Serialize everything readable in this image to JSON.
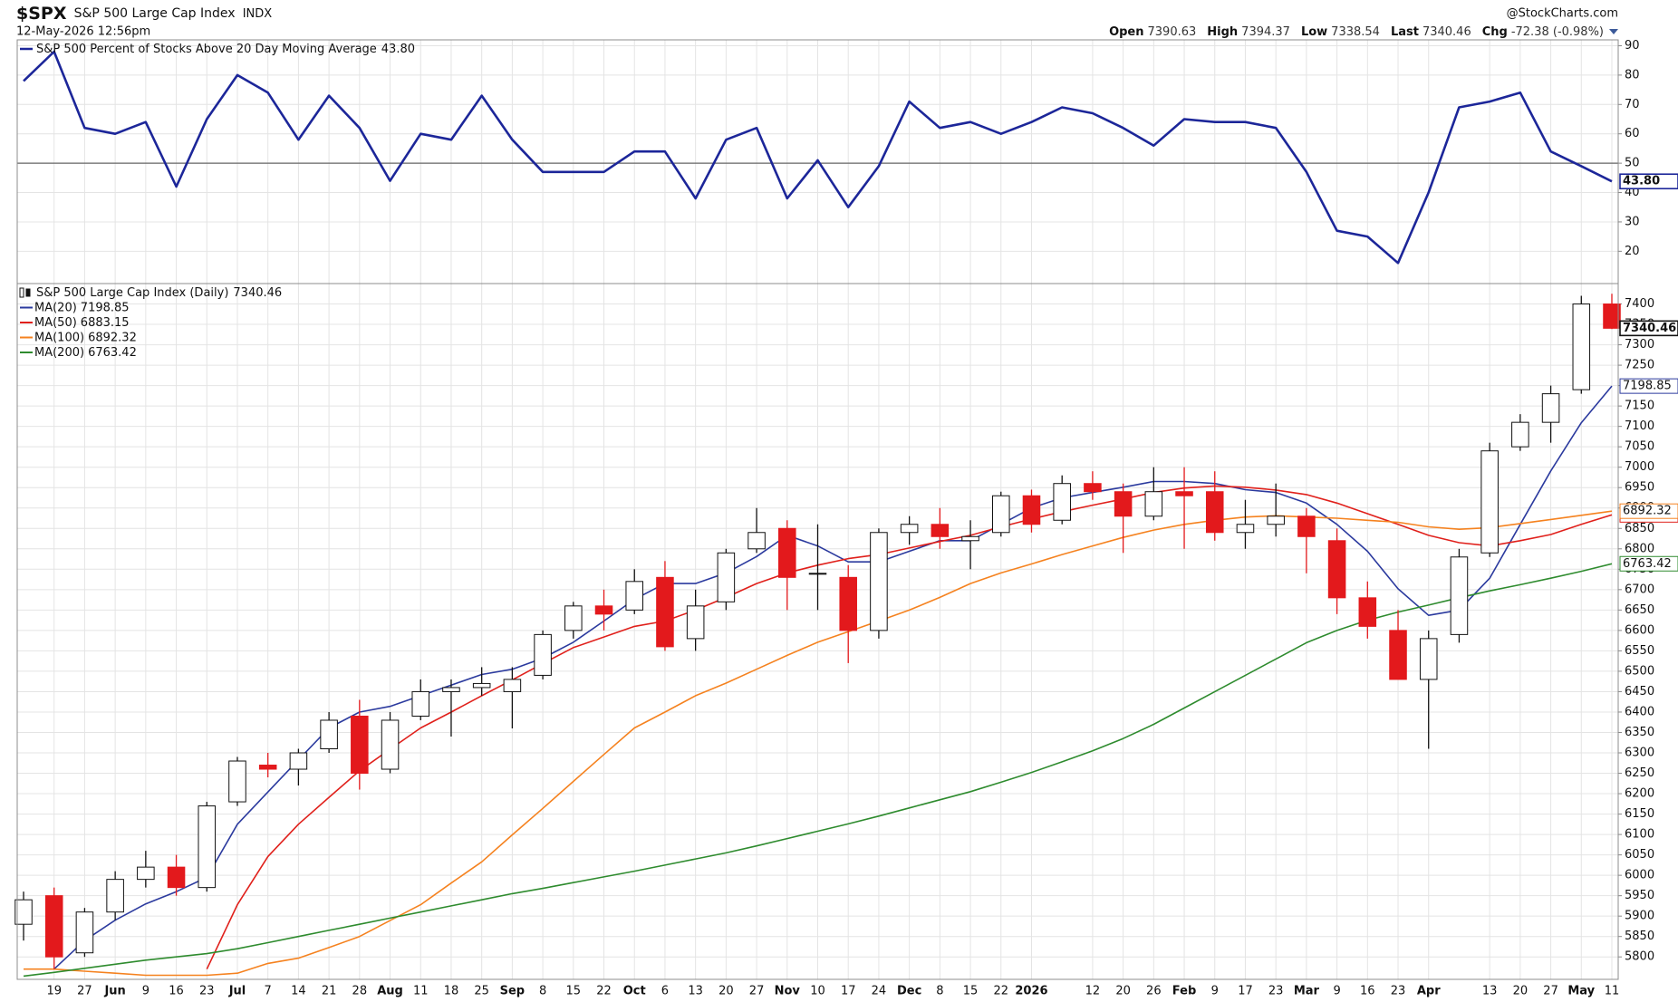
{
  "header": {
    "symbol": "$SPX",
    "name": "S&P 500 Large Cap Index",
    "exchange": "INDX",
    "datetime": "12-May-2026 12:56pm",
    "source": "@StockCharts.com",
    "quote": [
      {
        "label": "Open",
        "value": "7390.63"
      },
      {
        "label": "High",
        "value": "7394.37"
      },
      {
        "label": "Low",
        "value": "7338.54"
      },
      {
        "label": "Last",
        "value": "7340.46"
      },
      {
        "label": "Chg",
        "value": "-72.38 (-0.98%)"
      }
    ]
  },
  "chart_data": [
    {
      "type": "line",
      "name": "S&P 500 Percent of Stocks Above 20 Day Moving Average",
      "last_label": "43.80",
      "color": "#1c2699",
      "values": [
        78,
        88,
        62,
        60,
        64,
        42,
        65,
        80,
        74,
        58,
        73,
        62,
        44,
        60,
        58,
        73,
        58,
        47,
        47,
        47,
        54,
        54,
        38,
        58,
        62,
        38,
        51,
        35,
        49,
        71,
        62,
        64,
        60,
        64,
        69,
        67,
        62,
        56,
        65,
        64,
        64,
        62,
        47,
        27,
        25,
        16,
        40,
        69,
        71,
        74,
        54,
        49,
        43.8
      ],
      "ylim": [
        9,
        92
      ],
      "yticks": [
        20,
        30,
        40,
        50,
        60,
        70,
        80,
        90
      ],
      "reference_line": 50,
      "grid": true
    },
    {
      "type": "candlestick",
      "name": "S&P 500 Large Cap Index (Daily)",
      "last_label": "7340.46",
      "up_color": "#ffffff",
      "down_color": "#e3191c",
      "edge_color": "#111111",
      "categories": [
        null,
        "19",
        "27",
        "Jun",
        "9",
        "16",
        "23",
        "Jul",
        "7",
        "14",
        "21",
        "28",
        "Aug",
        "11",
        "18",
        "25",
        "Sep",
        "8",
        "15",
        "22",
        "Oct",
        "6",
        "13",
        "20",
        "27",
        "Nov",
        "10",
        "17",
        "24",
        "Dec",
        "8",
        "15",
        "22",
        "2026",
        null,
        "12",
        "20",
        "26",
        "Feb",
        "9",
        "17",
        "23",
        "Mar",
        "9",
        "16",
        "23",
        "Apr",
        null,
        "13",
        "20",
        "27",
        "May",
        "11"
      ],
      "open": [
        5880,
        5950,
        5810,
        5910,
        5990,
        6020,
        5970,
        6180,
        6270,
        6260,
        6310,
        6390,
        6260,
        6390,
        6450,
        6460,
        6450,
        6490,
        6600,
        6660,
        6650,
        6730,
        6580,
        6670,
        6800,
        6850,
        6740,
        6730,
        6600,
        6840,
        6860,
        6820,
        6840,
        6930,
        6870,
        6960,
        6940,
        6880,
        6940,
        6940,
        6840,
        6860,
        6880,
        6820,
        6680,
        6600,
        6480,
        6590,
        6790,
        7050,
        7110,
        7190,
        7400
      ],
      "high": [
        5960,
        5970,
        5920,
        6010,
        6060,
        6050,
        6180,
        6290,
        6300,
        6310,
        6400,
        6430,
        6400,
        6480,
        6480,
        6510,
        6510,
        6600,
        6670,
        6700,
        6750,
        6770,
        6700,
        6800,
        6900,
        6870,
        6860,
        6760,
        6850,
        6880,
        6900,
        6870,
        6940,
        6945,
        6980,
        6990,
        6960,
        7000,
        7000,
        6990,
        6920,
        6960,
        6900,
        6850,
        6720,
        6650,
        6600,
        6800,
        7060,
        7130,
        7200,
        7420,
        7425
      ],
      "low": [
        5840,
        5770,
        5800,
        5890,
        5970,
        5950,
        5960,
        6170,
        6240,
        6220,
        6300,
        6210,
        6250,
        6380,
        6340,
        6440,
        6360,
        6480,
        6580,
        6600,
        6640,
        6550,
        6550,
        6650,
        6790,
        6650,
        6650,
        6520,
        6580,
        6810,
        6800,
        6750,
        6830,
        6840,
        6860,
        6920,
        6790,
        6870,
        6800,
        6820,
        6800,
        6830,
        6740,
        6640,
        6580,
        6480,
        6310,
        6570,
        6780,
        7040,
        7060,
        7180,
        7338.54
      ],
      "close": [
        5940,
        5800,
        5910,
        5990,
        6020,
        5970,
        6170,
        6280,
        6260,
        6300,
        6380,
        6250,
        6380,
        6450,
        6460,
        6470,
        6480,
        6590,
        6660,
        6640,
        6720,
        6560,
        6660,
        6790,
        6840,
        6730,
        6740,
        6600,
        6840,
        6860,
        6830,
        6830,
        6930,
        6860,
        6960,
        6940,
        6880,
        6940,
        6930,
        6840,
        6860,
        6880,
        6830,
        6680,
        6610,
        6480,
        6580,
        6780,
        7040,
        7110,
        7180,
        7400,
        7340.46
      ],
      "series": [
        {
          "name": "MA(20)",
          "last_label": "7198.85",
          "color": "#2b3a9e",
          "values": [
            null,
            5770,
            5840,
            5890,
            5930,
            5960,
            5995,
            6125,
            6204,
            6283,
            6361,
            6400,
            6414,
            6440,
            6466,
            6492,
            6505,
            6532,
            6571,
            6623,
            6676,
            6715,
            6715,
            6741,
            6781,
            6833,
            6807,
            6768,
            6768,
            6794,
            6820,
            6820,
            6860,
            6900,
            6925,
            6938,
            6951,
            6965,
            6965,
            6960,
            6945,
            6938,
            6912,
            6860,
            6794,
            6702,
            6637,
            6650,
            6728,
            6860,
            6991,
            7109,
            7198.85
          ]
        },
        {
          "name": "MA(50)",
          "last_label": "6883.15",
          "color": "#e0201b",
          "values": [
            null,
            null,
            null,
            null,
            null,
            null,
            5770,
            5928,
            6046,
            6125,
            6191,
            6256,
            6309,
            6361,
            6400,
            6440,
            6479,
            6519,
            6558,
            6584,
            6610,
            6623,
            6650,
            6681,
            6715,
            6741,
            6760,
            6776,
            6786,
            6802,
            6818,
            6833,
            6854,
            6873,
            6891,
            6907,
            6922,
            6938,
            6949,
            6954,
            6951,
            6944,
            6933,
            6912,
            6886,
            6860,
            6833,
            6815,
            6807,
            6820,
            6835,
            6860,
            6883.15
          ]
        },
        {
          "name": "MA(100)",
          "last_label": "6892.32",
          "color": "#f5821f",
          "values": [
            5770,
            5770,
            5765,
            5760,
            5755,
            5755,
            5755,
            5760,
            5784,
            5797,
            5823,
            5850,
            5889,
            5928,
            5981,
            6033,
            6099,
            6164,
            6230,
            6296,
            6361,
            6400,
            6440,
            6471,
            6505,
            6539,
            6571,
            6597,
            6623,
            6650,
            6681,
            6715,
            6741,
            6763,
            6786,
            6807,
            6828,
            6846,
            6860,
            6870,
            6878,
            6881,
            6878,
            6875,
            6870,
            6865,
            6854,
            6848,
            6852,
            6862,
            6872,
            6882,
            6892.32
          ]
        },
        {
          "name": "MA(200)",
          "last_label": "6763.42",
          "color": "#2e8b2e",
          "values": [
            5753,
            5762,
            5772,
            5782,
            5792,
            5800,
            5808,
            5820,
            5835,
            5850,
            5865,
            5880,
            5895,
            5910,
            5925,
            5940,
            5955,
            5968,
            5982,
            5996,
            6010,
            6025,
            6040,
            6055,
            6072,
            6090,
            6108,
            6126,
            6145,
            6165,
            6185,
            6205,
            6228,
            6252,
            6278,
            6305,
            6335,
            6370,
            6410,
            6450,
            6490,
            6530,
            6570,
            6600,
            6625,
            6645,
            6662,
            6680,
            6697,
            6712,
            6728,
            6745,
            6763.42
          ]
        }
      ],
      "ylim": [
        5745,
        7450
      ],
      "yticks": [
        5800,
        5850,
        5900,
        5950,
        6000,
        6050,
        6100,
        6150,
        6200,
        6250,
        6300,
        6350,
        6400,
        6450,
        6500,
        6550,
        6600,
        6650,
        6700,
        6750,
        6800,
        6850,
        6900,
        6950,
        7000,
        7050,
        7100,
        7150,
        7200,
        7250,
        7300,
        7350,
        7400
      ],
      "grid": true
    }
  ]
}
